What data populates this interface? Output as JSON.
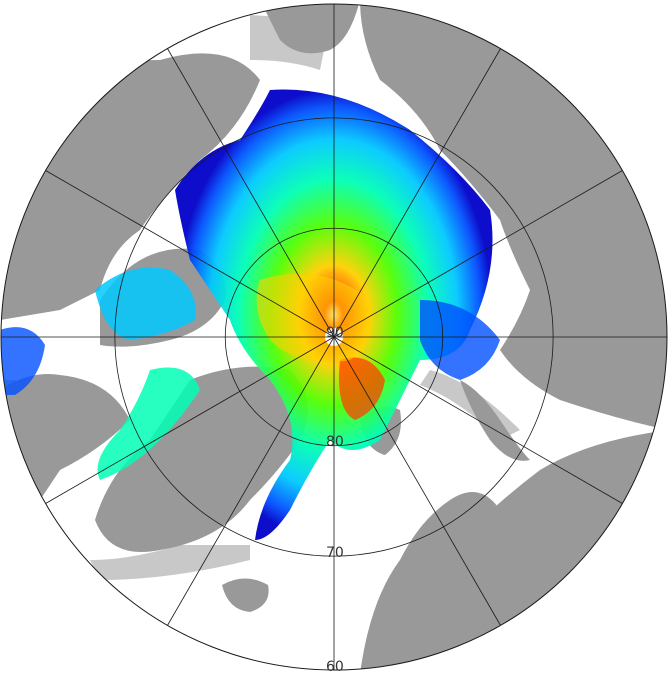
{
  "map": {
    "projection": "north-polar-stereographic",
    "latitude_circles": [
      90,
      80,
      70,
      60
    ],
    "latitude_labels": [
      "90",
      "80",
      "70",
      "60"
    ],
    "meridian_step_deg": 30,
    "colors": {
      "land": "#999999",
      "coast_shelf": "#c8c8c8",
      "ocean_background": "#ffffff",
      "grid": "#1a1a1a"
    },
    "ice_color_scale": [
      "#0000c8",
      "#0050ff",
      "#00c8ff",
      "#00ffb4",
      "#50ff00",
      "#c8ff00",
      "#ffd000",
      "#ff6400",
      "#ff0000",
      "#ff00a0"
    ]
  }
}
